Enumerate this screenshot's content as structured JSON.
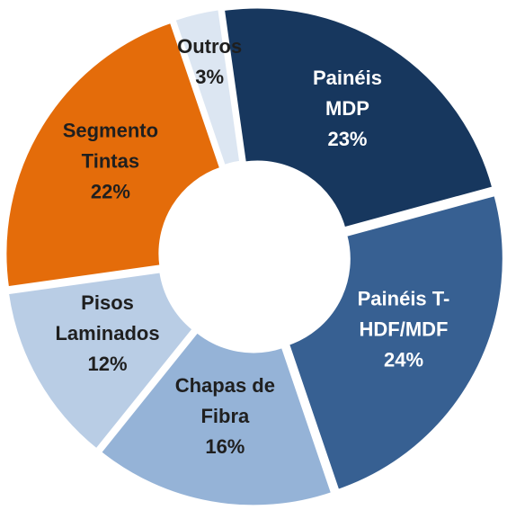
{
  "chart_data": {
    "type": "donut",
    "categories": [
      "Painéis MDP",
      "Painéis T-HDF/MDF",
      "Chapas de Fibra",
      "Pisos Laminados",
      "Segmento Tintas",
      "Outros"
    ],
    "values": [
      23,
      24,
      16,
      12,
      22,
      3
    ],
    "value_labels": [
      "23%",
      "24%",
      "16%",
      "12%",
      "22%",
      "3%"
    ],
    "colors": [
      "#17375e",
      "#376092",
      "#95b3d7",
      "#b9cde5",
      "#e46c0a",
      "#dce6f2"
    ]
  }
}
